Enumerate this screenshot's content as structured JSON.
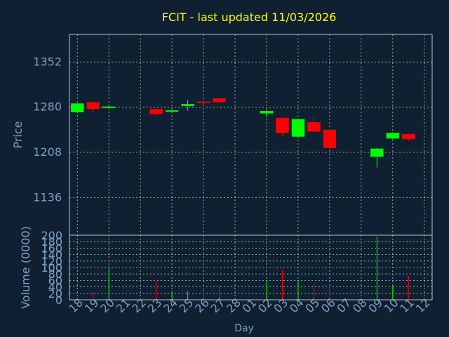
{
  "chart_data": [
    {
      "type": "candlestick",
      "title": "FCIT - last updated 11/03/2026",
      "ylabel": "Price",
      "ylim": [
        1076,
        1396
      ],
      "yticks": [
        1136,
        1208,
        1280,
        1352
      ],
      "grid": true,
      "categories": [
        "18",
        "19",
        "20",
        "21",
        "22",
        "23",
        "24",
        "25",
        "26",
        "27",
        "28",
        "01",
        "02",
        "03",
        "04",
        "05",
        "06",
        "07",
        "08",
        "09",
        "10",
        "11",
        "12"
      ],
      "candles": [
        {
          "day": "18",
          "open": 1272,
          "close": 1286,
          "high": 1286,
          "low": 1271
        },
        {
          "day": "19",
          "open": 1288,
          "close": 1277,
          "high": 1289,
          "low": 1272
        },
        {
          "day": "20",
          "open": 1279,
          "close": 1281,
          "high": 1282,
          "low": 1278
        },
        {
          "day": "23",
          "open": 1277,
          "close": 1269,
          "high": 1278,
          "low": 1266
        },
        {
          "day": "24",
          "open": 1273,
          "close": 1275,
          "high": 1276,
          "low": 1272
        },
        {
          "day": "25",
          "open": 1282,
          "close": 1285,
          "high": 1292,
          "low": 1274
        },
        {
          "day": "26",
          "open": 1289,
          "close": 1287,
          "high": 1292,
          "low": 1283
        },
        {
          "day": "27",
          "open": 1294,
          "close": 1288,
          "high": 1295,
          "low": 1287
        },
        {
          "day": "02",
          "open": 1270,
          "close": 1274,
          "high": 1275,
          "low": 1264
        },
        {
          "day": "03",
          "open": 1263,
          "close": 1239,
          "high": 1264,
          "low": 1235
        },
        {
          "day": "04",
          "open": 1233,
          "close": 1261,
          "high": 1261,
          "low": 1232
        },
        {
          "day": "05",
          "open": 1256,
          "close": 1241,
          "high": 1266,
          "low": 1240
        },
        {
          "day": "06",
          "open": 1244,
          "close": 1215,
          "high": 1245,
          "low": 1214
        },
        {
          "day": "09",
          "open": 1201,
          "close": 1214,
          "high": 1215,
          "low": 1184
        },
        {
          "day": "10",
          "open": 1230,
          "close": 1239,
          "high": 1240,
          "low": 1229
        },
        {
          "day": "11",
          "open": 1237,
          "close": 1229,
          "high": 1238,
          "low": 1226
        }
      ]
    },
    {
      "type": "bar",
      "xlabel": "Day",
      "ylabel": "Volume (0000)",
      "ylim": [
        0,
        200
      ],
      "yticks": [
        0,
        20,
        40,
        60,
        80,
        100,
        120,
        140,
        160,
        180,
        200
      ],
      "grid": true,
      "categories": [
        "18",
        "19",
        "20",
        "21",
        "22",
        "23",
        "24",
        "25",
        "26",
        "27",
        "28",
        "01",
        "02",
        "03",
        "04",
        "05",
        "06",
        "07",
        "08",
        "09",
        "10",
        "11",
        "12"
      ],
      "volumes": [
        {
          "day": "18",
          "value": 0,
          "direction": "up"
        },
        {
          "day": "19",
          "value": 24,
          "direction": "down"
        },
        {
          "day": "20",
          "value": 97,
          "direction": "up"
        },
        {
          "day": "23",
          "value": 58,
          "direction": "down"
        },
        {
          "day": "24",
          "value": 24,
          "direction": "up"
        },
        {
          "day": "25",
          "value": 28,
          "direction": "up"
        },
        {
          "day": "26",
          "value": 36,
          "direction": "down"
        },
        {
          "day": "27",
          "value": 44,
          "direction": "down"
        },
        {
          "day": "02",
          "value": 60,
          "direction": "up"
        },
        {
          "day": "03",
          "value": 92,
          "direction": "down"
        },
        {
          "day": "04",
          "value": 60,
          "direction": "up"
        },
        {
          "day": "05",
          "value": 46,
          "direction": "down"
        },
        {
          "day": "06",
          "value": 46,
          "direction": "down"
        },
        {
          "day": "09",
          "value": 196,
          "direction": "up"
        },
        {
          "day": "10",
          "value": 46,
          "direction": "up"
        },
        {
          "day": "11",
          "value": 74,
          "direction": "down"
        }
      ]
    }
  ],
  "colors": {
    "background": "#0f2033",
    "axis_text": "#7f9fbf",
    "title": "#ffff00",
    "grid": "#c0c0c0",
    "up": "#00ff00",
    "down": "#ff0000"
  }
}
